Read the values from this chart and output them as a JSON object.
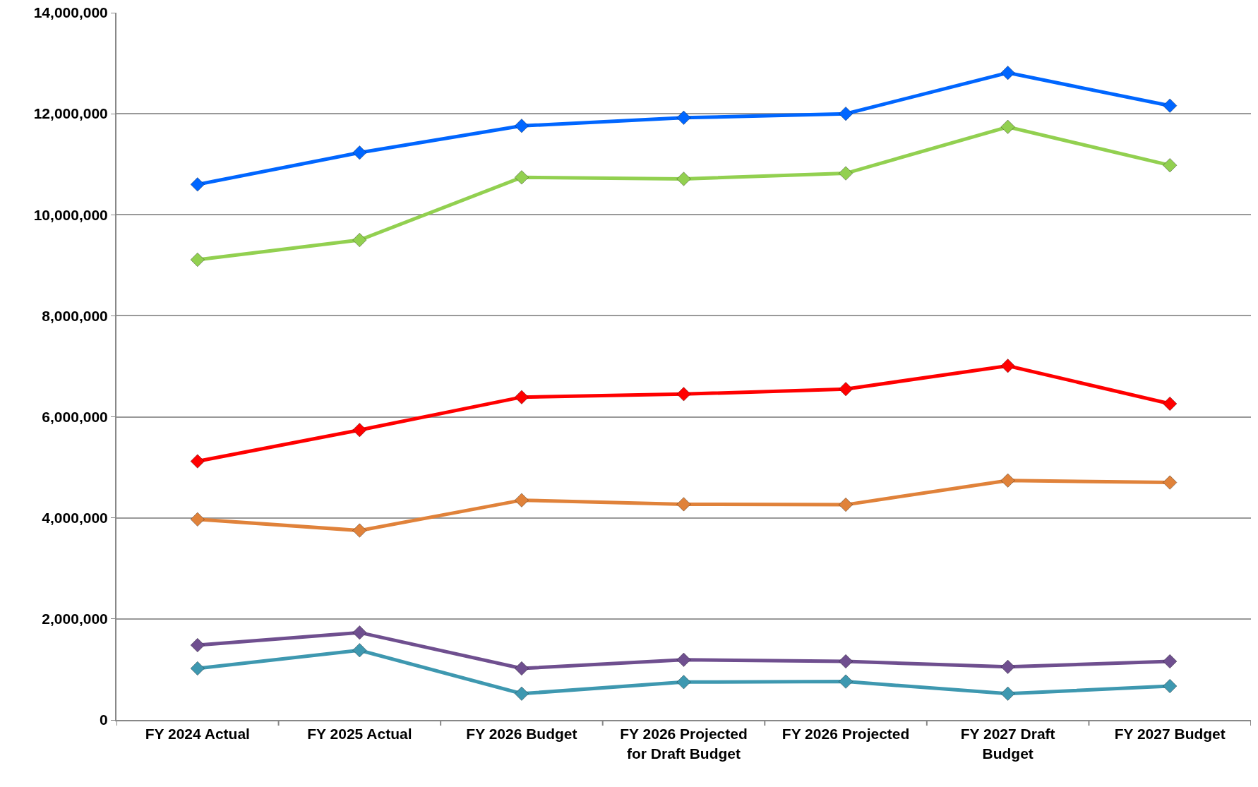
{
  "chart_data": {
    "type": "line",
    "categories": [
      "FY 2024 Actual",
      "FY 2025 Actual",
      "FY 2026 Budget",
      "FY 2026 Projected\nfor Draft Budget",
      "FY 2026 Projected",
      "FY 2027 Draft\nBudget",
      "FY 2027 Budget"
    ],
    "series": [
      {
        "color": "#0066ff",
        "values": [
          10600000,
          11230000,
          11760000,
          11920000,
          12000000,
          12810000,
          12160000
        ]
      },
      {
        "color": "#92d050",
        "values": [
          9110000,
          9500000,
          10740000,
          10710000,
          10820000,
          11740000,
          10980000
        ]
      },
      {
        "color": "#ff0000",
        "values": [
          5120000,
          5740000,
          6390000,
          6450000,
          6550000,
          7010000,
          6260000
        ]
      },
      {
        "color": "#e0823a",
        "values": [
          3970000,
          3750000,
          4350000,
          4270000,
          4260000,
          4740000,
          4700000
        ]
      },
      {
        "color": "#6f4f8f",
        "values": [
          1480000,
          1730000,
          1020000,
          1190000,
          1160000,
          1050000,
          1160000
        ]
      },
      {
        "color": "#3e98b0",
        "values": [
          1020000,
          1380000,
          520000,
          750000,
          760000,
          520000,
          670000
        ]
      }
    ],
    "ylim": [
      0,
      14000000
    ],
    "yticks": [
      {
        "value": 0,
        "label": "0"
      },
      {
        "value": 2000000,
        "label": "2,000,000"
      },
      {
        "value": 4000000,
        "label": "4,000,000"
      },
      {
        "value": 6000000,
        "label": "6,000,000"
      },
      {
        "value": 8000000,
        "label": "8,000,000"
      },
      {
        "value": 10000000,
        "label": "10,000,000"
      },
      {
        "value": 12000000,
        "label": "12,000,000"
      },
      {
        "value": 14000000,
        "label": "14,000,000"
      }
    ],
    "grid": "y",
    "legend": false,
    "marker": "diamond",
    "line_style": "solid"
  }
}
